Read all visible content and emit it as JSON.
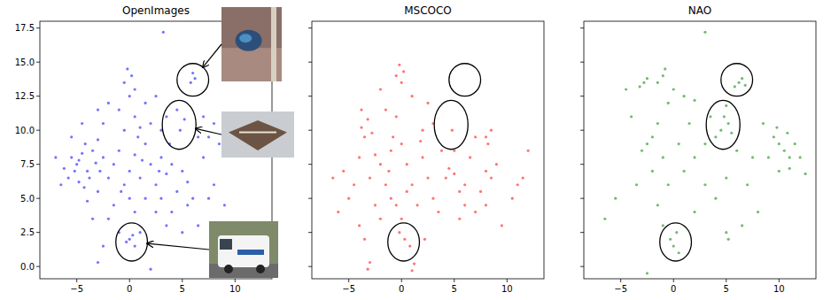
{
  "chart_data": [
    {
      "type": "scatter",
      "title": "OpenImages",
      "color": "#0000ff",
      "xlim": [
        -8.5,
        13.5
      ],
      "ylim": [
        -0.9,
        18
      ],
      "xticks": [
        {
          "value": -5,
          "label": "−5"
        },
        0,
        5,
        10
      ],
      "yticks": [
        {
          "value": 0,
          "label": "0.0"
        },
        2.5,
        {
          "value": 5,
          "label": "5.0"
        },
        7.5,
        {
          "value": 10,
          "label": "10.0"
        },
        12.5,
        {
          "value": 15,
          "label": "15.0"
        },
        17.5
      ],
      "regions": [
        {
          "x": 6,
          "y": 13.7,
          "rx": 1.5,
          "ry": 1.2
        },
        {
          "x": 4.7,
          "y": 10.4,
          "rx": 1.6,
          "ry": 1.8
        },
        {
          "x": 0.2,
          "y": 1.8,
          "rx": 1.5,
          "ry": 1.4
        }
      ],
      "x": [
        -5.5,
        -5,
        -4.5,
        -4,
        -3.5,
        -5.8,
        -4.8,
        -3.2,
        -6.2,
        -4.2,
        -3,
        -2.5,
        -2,
        -1.5,
        -1,
        -0.5,
        0,
        0.5,
        1,
        1.5,
        2,
        2.5,
        3,
        3.5,
        4,
        4.5,
        5,
        5.5,
        6,
        3,
        1.5,
        0,
        -1.5,
        -3,
        -4,
        2.5,
        4,
        5.5,
        0.5,
        -2,
        -0.5,
        0.5,
        1,
        -1,
        1.5,
        0,
        -0.2,
        0.2,
        -0.5,
        0.5,
        -2,
        -3,
        -2.5,
        2,
        3,
        3.5,
        4.8,
        5.2,
        4.5,
        5.8,
        6.2,
        6,
        0,
        0.5,
        0.3,
        -0.3,
        1,
        -2.5,
        -3,
        2,
        7.5,
        8,
        8.5,
        7,
        6.5,
        8,
        7.5,
        9,
        6.5,
        5,
        -6.5,
        -7,
        -5.5,
        -4.5,
        -1,
        3.5,
        -3.5,
        2.5,
        3.2,
        7,
        -4.8,
        -3.8,
        -2.8,
        -5.2,
        -4.3,
        1.2,
        2.8,
        -0.8,
        3.8,
        0.8
      ],
      "values": [
        8,
        7.5,
        8.3,
        7,
        8.5,
        6.5,
        6.2,
        7.6,
        7.2,
        9,
        9.3,
        8,
        6.5,
        7.5,
        8.5,
        6,
        7,
        8.2,
        6.5,
        9,
        7.5,
        6,
        8,
        6.8,
        7.5,
        5.5,
        7,
        6.2,
        5,
        5,
        5,
        5,
        4.5,
        5.5,
        4.8,
        4,
        4,
        4.5,
        4,
        3.5,
        10,
        11,
        10.2,
        11.5,
        12,
        12.5,
        14.5,
        14,
        13.5,
        13,
        12,
        11.5,
        10.5,
        10.5,
        10,
        11,
        10,
        10.8,
        11.5,
        13.5,
        13.8,
        14.2,
        2,
        1.5,
        2.3,
        1.8,
        2.5,
        1.5,
        0.3,
        -0.2,
        9.5,
        10.5,
        9,
        8,
        9.5,
        6,
        5,
        4.5,
        3,
        2.5,
        6,
        8,
        9.5,
        10.5,
        2.5,
        3,
        3.5,
        12.5,
        17.2,
        11,
        7.8,
        6.5,
        7,
        7,
        5.8,
        7.8,
        7,
        5.5,
        9,
        9.5
      ]
    },
    {
      "type": "scatter",
      "title": "MSCOCO",
      "color": "#ff0000",
      "tick_labels": "x",
      "xlim": [
        -8.5,
        13.5
      ],
      "ylim": [
        -0.9,
        18
      ],
      "xticks": [
        {
          "value": -5,
          "label": "−5"
        },
        0,
        5,
        10
      ],
      "yticks": [
        0,
        2.5,
        5,
        7.5,
        10,
        12.5,
        15,
        17.5
      ],
      "regions": [
        {
          "x": 6,
          "y": 13.7,
          "rx": 1.5,
          "ry": 1.2
        },
        {
          "x": 4.7,
          "y": 10.4,
          "rx": 1.6,
          "ry": 1.8
        },
        {
          "x": 0.2,
          "y": 1.8,
          "rx": 1.5,
          "ry": 1.4
        }
      ],
      "x": [
        -0.2,
        0.2,
        -0.5,
        0,
        -3.8,
        -3.2,
        -3.5,
        -2.8,
        -2.5,
        -2,
        -3,
        -4.5,
        -1.5,
        -1,
        0,
        0.5,
        1,
        2,
        2.5,
        3,
        4.5,
        5,
        4.2,
        1.5,
        -0.5,
        -2,
        0,
        -5,
        -6,
        2.5,
        -1.5,
        -0.5,
        3,
        8,
        8.5,
        8.2,
        8,
        8.5,
        7.5,
        11.5,
        11,
        10.5,
        6,
        5.5,
        7,
        -3,
        -3.2,
        1,
        1.2,
        0.3,
        -0.2,
        0.8,
        4.8,
        5,
        -4,
        -5.5,
        -1,
        3.5,
        6,
        8,
        -3.5,
        2.2,
        12,
        -6.5,
        9,
        6.5,
        -2,
        1,
        2,
        -0.8,
        3.8,
        5.5,
        -2.5,
        0.5,
        -4,
        9.5,
        7,
        -1.2,
        1.8,
        -3.8
      ],
      "values": [
        14.8,
        14.3,
        14,
        13.5,
        10.2,
        10.8,
        9.5,
        9.8,
        8.2,
        7.5,
        6.5,
        6,
        6,
        8.5,
        9,
        7.5,
        6,
        8,
        6.5,
        5,
        7.2,
        6.8,
        6.5,
        4.5,
        4.5,
        3.5,
        3.5,
        5,
        4,
        12,
        11.5,
        11,
        10.5,
        9.5,
        10,
        9,
        7,
        6.5,
        5.5,
        6.5,
        6,
        5,
        4.5,
        3.5,
        4,
        0.3,
        -0.2,
        -0.3,
        0.2,
        2,
        2.5,
        1.5,
        10,
        8.5,
        8,
        7,
        5,
        4,
        6,
        4.5,
        2,
        2,
        8.5,
        6.5,
        7.5,
        8,
        13,
        12.5,
        10,
        9.5,
        8.5,
        5.5,
        4.5,
        5.5,
        3,
        3,
        9.5,
        7,
        9.2,
        11.5
      ]
    },
    {
      "type": "scatter",
      "title": "NAO",
      "color": "#007f00",
      "tick_labels": "x",
      "xlim": [
        -8.5,
        13.5
      ],
      "ylim": [
        -0.9,
        18
      ],
      "xticks": [
        {
          "value": -5,
          "label": "−5"
        },
        0,
        5,
        10
      ],
      "yticks": [
        0,
        2.5,
        5,
        7.5,
        10,
        12.5,
        15,
        17.5
      ],
      "regions": [
        {
          "x": 6,
          "y": 13.7,
          "rx": 1.5,
          "ry": 1.2
        },
        {
          "x": 4.7,
          "y": 10.4,
          "rx": 1.6,
          "ry": 1.8
        },
        {
          "x": 0.2,
          "y": 1.8,
          "rx": 1.5,
          "ry": 1.4
        }
      ],
      "x": [
        -2.8,
        -2.5,
        -3.2,
        -1,
        -0.8,
        -1.5,
        0,
        -0.5,
        1,
        2,
        6.2,
        6.8,
        6.5,
        5.8,
        4.8,
        5.2,
        4.5,
        5,
        5.5,
        4,
        9.5,
        10,
        10.5,
        11,
        9.8,
        10.8,
        11.5,
        9,
        10,
        11,
        12,
        12.5,
        -2.5,
        -3,
        -2,
        -4,
        -1.5,
        -1,
        0.5,
        2,
        3,
        1,
        -0.5,
        3,
        5,
        7,
        8,
        6.5,
        5,
        5.2,
        0,
        0.3,
        -0.3,
        0.5,
        -1,
        -2.5,
        -6.5,
        3,
        -3.5,
        -5.5,
        2,
        -1.5,
        7.5,
        3.5,
        -4.5,
        1.5,
        8.5,
        6,
        4,
        -2
      ],
      "values": [
        13.5,
        13.8,
        13.2,
        14,
        14.5,
        13.5,
        13,
        12,
        12.5,
        12.2,
        13.5,
        13.3,
        13.8,
        13.2,
        11,
        10.5,
        10,
        11.8,
        9.8,
        9.5,
        9.5,
        9,
        8.5,
        8,
        10.2,
        9.8,
        9,
        8,
        7,
        7.2,
        8,
        6.8,
        9,
        8.5,
        9.5,
        11,
        10.5,
        8,
        9,
        8,
        9,
        7,
        6,
        6,
        6.5,
        6,
        4,
        3,
        2.5,
        2,
        1.5,
        2.5,
        2,
        1,
        3,
        -0.5,
        3.5,
        17.2,
        6,
        5,
        4,
        4.5,
        8,
        11,
        13,
        10.5,
        10.5,
        8.5,
        5,
        7
      ]
    }
  ]
}
